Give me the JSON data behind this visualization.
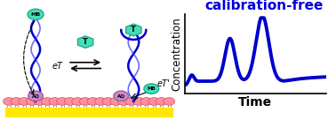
{
  "title": "calibration-free",
  "title_color": "#0000DD",
  "title_fontsize": 11,
  "xlabel": "Time",
  "ylabel": "Concentration",
  "xlabel_fontsize": 10,
  "ylabel_fontsize": 8.5,
  "line_color": "#0000CC",
  "line_width": 2.8,
  "bg_color": "#ffffff",
  "xlim": [
    0,
    10
  ],
  "ylim": [
    -0.05,
    1.1
  ],
  "axis_color": "#000000"
}
